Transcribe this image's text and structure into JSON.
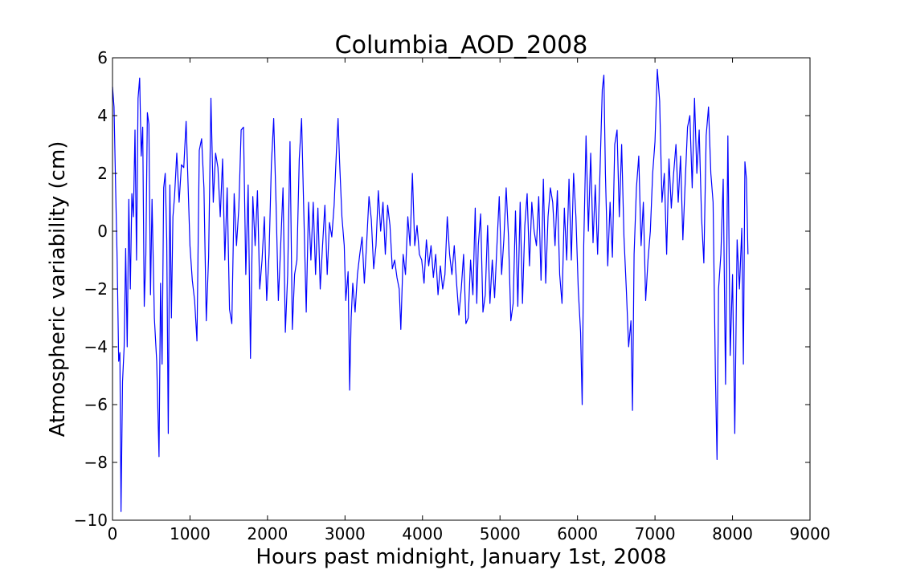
{
  "chart_data": {
    "type": "line",
    "title": "Columbia_AOD_2008",
    "xlabel": "Hours past midnight, January 1st, 2008",
    "ylabel": "Atmospheric variability (cm)",
    "xlim": [
      0,
      9000
    ],
    "ylim": [
      -10,
      6
    ],
    "xticks": [
      0,
      1000,
      2000,
      3000,
      4000,
      5000,
      6000,
      7000,
      8000,
      9000
    ],
    "yticks": [
      6,
      4,
      2,
      0,
      -2,
      -4,
      -6,
      -8,
      -10
    ],
    "xtick_labels": [
      "0",
      "1000",
      "2000",
      "3000",
      "4000",
      "5000",
      "6000",
      "7000",
      "8000",
      "9000"
    ],
    "ytick_labels": [
      "6",
      "4",
      "2",
      "0",
      "−2",
      "−4",
      "−6",
      "−8",
      "−10"
    ],
    "grid": false,
    "line_color": "#0000ff",
    "series": [
      {
        "values": [
          [
            0,
            5.0
          ],
          [
            20,
            4.3
          ],
          [
            40,
            1.5
          ],
          [
            60,
            -1.0
          ],
          [
            80,
            -4.5
          ],
          [
            95,
            -4.2
          ],
          [
            110,
            -9.7
          ],
          [
            130,
            -5.2
          ],
          [
            150,
            -4.0
          ],
          [
            170,
            -0.6
          ],
          [
            190,
            -4.0
          ],
          [
            210,
            1.1
          ],
          [
            230,
            -2.0
          ],
          [
            250,
            1.3
          ],
          [
            270,
            0.5
          ],
          [
            290,
            3.5
          ],
          [
            310,
            -1.0
          ],
          [
            330,
            4.6
          ],
          [
            350,
            5.3
          ],
          [
            370,
            2.6
          ],
          [
            390,
            3.6
          ],
          [
            410,
            -2.6
          ],
          [
            430,
            -0.8
          ],
          [
            450,
            4.1
          ],
          [
            470,
            3.7
          ],
          [
            490,
            -2.2
          ],
          [
            510,
            1.1
          ],
          [
            540,
            -3.0
          ],
          [
            570,
            -4.5
          ],
          [
            600,
            -7.8
          ],
          [
            620,
            -1.8
          ],
          [
            640,
            -4.6
          ],
          [
            660,
            1.5
          ],
          [
            680,
            2.0
          ],
          [
            700,
            -0.3
          ],
          [
            720,
            -7.0
          ],
          [
            740,
            1.6
          ],
          [
            760,
            -3.0
          ],
          [
            780,
            0.5
          ],
          [
            800,
            1.2
          ],
          [
            830,
            2.7
          ],
          [
            860,
            1.0
          ],
          [
            890,
            2.3
          ],
          [
            920,
            2.2
          ],
          [
            950,
            3.8
          ],
          [
            970,
            2.0
          ],
          [
            1000,
            -0.5
          ],
          [
            1030,
            -1.7
          ],
          [
            1060,
            -2.4
          ],
          [
            1090,
            -3.8
          ],
          [
            1120,
            2.8
          ],
          [
            1150,
            3.2
          ],
          [
            1180,
            1.5
          ],
          [
            1210,
            -3.1
          ],
          [
            1240,
            -0.9
          ],
          [
            1270,
            4.6
          ],
          [
            1300,
            1.0
          ],
          [
            1330,
            2.7
          ],
          [
            1360,
            2.2
          ],
          [
            1390,
            0.5
          ],
          [
            1420,
            2.5
          ],
          [
            1450,
            -1.0
          ],
          [
            1480,
            1.5
          ],
          [
            1510,
            -2.7
          ],
          [
            1540,
            -3.2
          ],
          [
            1570,
            1.3
          ],
          [
            1600,
            -0.5
          ],
          [
            1630,
            0.8
          ],
          [
            1660,
            3.5
          ],
          [
            1690,
            3.6
          ],
          [
            1720,
            -1.5
          ],
          [
            1750,
            1.6
          ],
          [
            1780,
            -4.4
          ],
          [
            1810,
            1.2
          ],
          [
            1840,
            -0.5
          ],
          [
            1870,
            1.4
          ],
          [
            1900,
            -2.0
          ],
          [
            1930,
            -1.0
          ],
          [
            1960,
            0.5
          ],
          [
            1990,
            -2.4
          ],
          [
            2020,
            -0.8
          ],
          [
            2050,
            2.3
          ],
          [
            2080,
            3.9
          ],
          [
            2110,
            1.0
          ],
          [
            2140,
            -2.4
          ],
          [
            2170,
            -0.5
          ],
          [
            2200,
            1.5
          ],
          [
            2230,
            -3.5
          ],
          [
            2260,
            -1.5
          ],
          [
            2290,
            3.1
          ],
          [
            2320,
            -3.4
          ],
          [
            2350,
            -1.5
          ],
          [
            2380,
            -1.0
          ],
          [
            2410,
            2.5
          ],
          [
            2440,
            3.9
          ],
          [
            2470,
            0.5
          ],
          [
            2500,
            -2.8
          ],
          [
            2530,
            1.0
          ],
          [
            2560,
            -1.0
          ],
          [
            2590,
            1.0
          ],
          [
            2620,
            -1.5
          ],
          [
            2650,
            0.8
          ],
          [
            2680,
            -2.0
          ],
          [
            2710,
            -0.5
          ],
          [
            2740,
            0.9
          ],
          [
            2770,
            -1.5
          ],
          [
            2800,
            0.3
          ],
          [
            2830,
            -0.2
          ],
          [
            2860,
            0.9
          ],
          [
            2890,
            2.8
          ],
          [
            2910,
            3.9
          ],
          [
            2930,
            2.4
          ],
          [
            2960,
            0.5
          ],
          [
            2990,
            -0.5
          ],
          [
            3010,
            -2.4
          ],
          [
            3040,
            -1.4
          ],
          [
            3060,
            -5.5
          ],
          [
            3080,
            -3.0
          ],
          [
            3100,
            -1.8
          ],
          [
            3130,
            -2.8
          ],
          [
            3160,
            -1.5
          ],
          [
            3190,
            -0.8
          ],
          [
            3220,
            -0.2
          ],
          [
            3250,
            -1.8
          ],
          [
            3280,
            -0.4
          ],
          [
            3310,
            1.2
          ],
          [
            3340,
            0.4
          ],
          [
            3370,
            -1.3
          ],
          [
            3400,
            -0.5
          ],
          [
            3430,
            1.4
          ],
          [
            3460,
            0.0
          ],
          [
            3490,
            1.0
          ],
          [
            3520,
            -0.8
          ],
          [
            3550,
            0.9
          ],
          [
            3580,
            0.2
          ],
          [
            3610,
            -1.3
          ],
          [
            3640,
            -1.0
          ],
          [
            3670,
            -1.6
          ],
          [
            3700,
            -2.0
          ],
          [
            3720,
            -3.4
          ],
          [
            3750,
            -0.8
          ],
          [
            3780,
            -1.5
          ],
          [
            3810,
            0.5
          ],
          [
            3840,
            -0.5
          ],
          [
            3870,
            2.0
          ],
          [
            3900,
            -0.5
          ],
          [
            3930,
            0.2
          ],
          [
            3960,
            -0.8
          ],
          [
            3990,
            -1.0
          ],
          [
            4020,
            -1.8
          ],
          [
            4050,
            -0.3
          ],
          [
            4080,
            -1.2
          ],
          [
            4110,
            -0.5
          ],
          [
            4140,
            -1.6
          ],
          [
            4170,
            -0.8
          ],
          [
            4200,
            -2.2
          ],
          [
            4230,
            -1.2
          ],
          [
            4260,
            -2.0
          ],
          [
            4290,
            -1.5
          ],
          [
            4320,
            0.5
          ],
          [
            4350,
            -0.8
          ],
          [
            4380,
            -1.5
          ],
          [
            4410,
            -0.5
          ],
          [
            4440,
            -1.8
          ],
          [
            4470,
            -2.9
          ],
          [
            4500,
            -2.0
          ],
          [
            4530,
            -0.8
          ],
          [
            4560,
            -3.2
          ],
          [
            4590,
            -3.0
          ],
          [
            4620,
            -1.0
          ],
          [
            4650,
            -2.2
          ],
          [
            4680,
            0.8
          ],
          [
            4700,
            -2.5
          ],
          [
            4720,
            -0.5
          ],
          [
            4750,
            0.6
          ],
          [
            4780,
            -2.8
          ],
          [
            4810,
            -2.2
          ],
          [
            4840,
            0.2
          ],
          [
            4870,
            -2.5
          ],
          [
            4900,
            -1.0
          ],
          [
            4930,
            -2.3
          ],
          [
            4960,
            -0.5
          ],
          [
            4990,
            1.2
          ],
          [
            5020,
            -1.5
          ],
          [
            5050,
            -0.3
          ],
          [
            5080,
            1.5
          ],
          [
            5110,
            -0.2
          ],
          [
            5140,
            -3.1
          ],
          [
            5170,
            -2.5
          ],
          [
            5200,
            0.7
          ],
          [
            5230,
            -2.6
          ],
          [
            5260,
            1.0
          ],
          [
            5290,
            -2.5
          ],
          [
            5320,
            0.2
          ],
          [
            5350,
            1.3
          ],
          [
            5380,
            -1.2
          ],
          [
            5410,
            1.0
          ],
          [
            5440,
            0.0
          ],
          [
            5470,
            -0.5
          ],
          [
            5500,
            1.2
          ],
          [
            5530,
            -1.7
          ],
          [
            5560,
            1.8
          ],
          [
            5590,
            -1.8
          ],
          [
            5620,
            0.5
          ],
          [
            5650,
            1.5
          ],
          [
            5680,
            1.0
          ],
          [
            5710,
            -0.5
          ],
          [
            5740,
            1.4
          ],
          [
            5770,
            -1.5
          ],
          [
            5800,
            -2.5
          ],
          [
            5830,
            0.8
          ],
          [
            5860,
            -1.0
          ],
          [
            5890,
            1.8
          ],
          [
            5920,
            -1.0
          ],
          [
            5950,
            2.0
          ],
          [
            5980,
            0.5
          ],
          [
            6010,
            -2.0
          ],
          [
            6040,
            -3.5
          ],
          [
            6060,
            -6.0
          ],
          [
            6080,
            -0.5
          ],
          [
            6110,
            3.3
          ],
          [
            6140,
            0.0
          ],
          [
            6170,
            2.7
          ],
          [
            6200,
            -0.4
          ],
          [
            6230,
            1.6
          ],
          [
            6260,
            -0.8
          ],
          [
            6290,
            2.0
          ],
          [
            6320,
            4.9
          ],
          [
            6340,
            5.4
          ],
          [
            6360,
            2.0
          ],
          [
            6390,
            -1.2
          ],
          [
            6420,
            1.0
          ],
          [
            6450,
            -0.9
          ],
          [
            6480,
            3.0
          ],
          [
            6510,
            3.5
          ],
          [
            6540,
            0.5
          ],
          [
            6570,
            3.0
          ],
          [
            6600,
            -0.2
          ],
          [
            6630,
            -2.0
          ],
          [
            6660,
            -4.0
          ],
          [
            6690,
            -3.1
          ],
          [
            6710,
            -6.2
          ],
          [
            6730,
            -0.8
          ],
          [
            6760,
            1.5
          ],
          [
            6790,
            2.6
          ],
          [
            6820,
            -0.5
          ],
          [
            6850,
            1.0
          ],
          [
            6880,
            -2.4
          ],
          [
            6910,
            -1.0
          ],
          [
            6940,
            0.0
          ],
          [
            6970,
            2.0
          ],
          [
            7000,
            3.1
          ],
          [
            7030,
            5.6
          ],
          [
            7060,
            4.5
          ],
          [
            7090,
            1.0
          ],
          [
            7120,
            2.0
          ],
          [
            7150,
            -0.8
          ],
          [
            7180,
            2.5
          ],
          [
            7210,
            0.8
          ],
          [
            7240,
            2.0
          ],
          [
            7270,
            3.0
          ],
          [
            7300,
            1.0
          ],
          [
            7330,
            2.6
          ],
          [
            7360,
            -0.3
          ],
          [
            7390,
            1.7
          ],
          [
            7420,
            3.6
          ],
          [
            7450,
            4.0
          ],
          [
            7480,
            1.5
          ],
          [
            7510,
            4.6
          ],
          [
            7540,
            2.0
          ],
          [
            7570,
            3.5
          ],
          [
            7600,
            0.5
          ],
          [
            7630,
            -1.1
          ],
          [
            7660,
            3.3
          ],
          [
            7690,
            4.3
          ],
          [
            7720,
            2.0
          ],
          [
            7750,
            1.0
          ],
          [
            7780,
            -5.0
          ],
          [
            7800,
            -7.9
          ],
          [
            7820,
            -2.0
          ],
          [
            7850,
            -0.8
          ],
          [
            7880,
            1.8
          ],
          [
            7910,
            -5.3
          ],
          [
            7940,
            3.3
          ],
          [
            7970,
            -4.3
          ],
          [
            8000,
            -1.5
          ],
          [
            8030,
            -7.0
          ],
          [
            8060,
            -0.3
          ],
          [
            8090,
            -2.0
          ],
          [
            8120,
            0.1
          ],
          [
            8140,
            -4.6
          ],
          [
            8160,
            2.4
          ],
          [
            8180,
            1.8
          ],
          [
            8200,
            -0.8
          ]
        ]
      }
    ]
  }
}
